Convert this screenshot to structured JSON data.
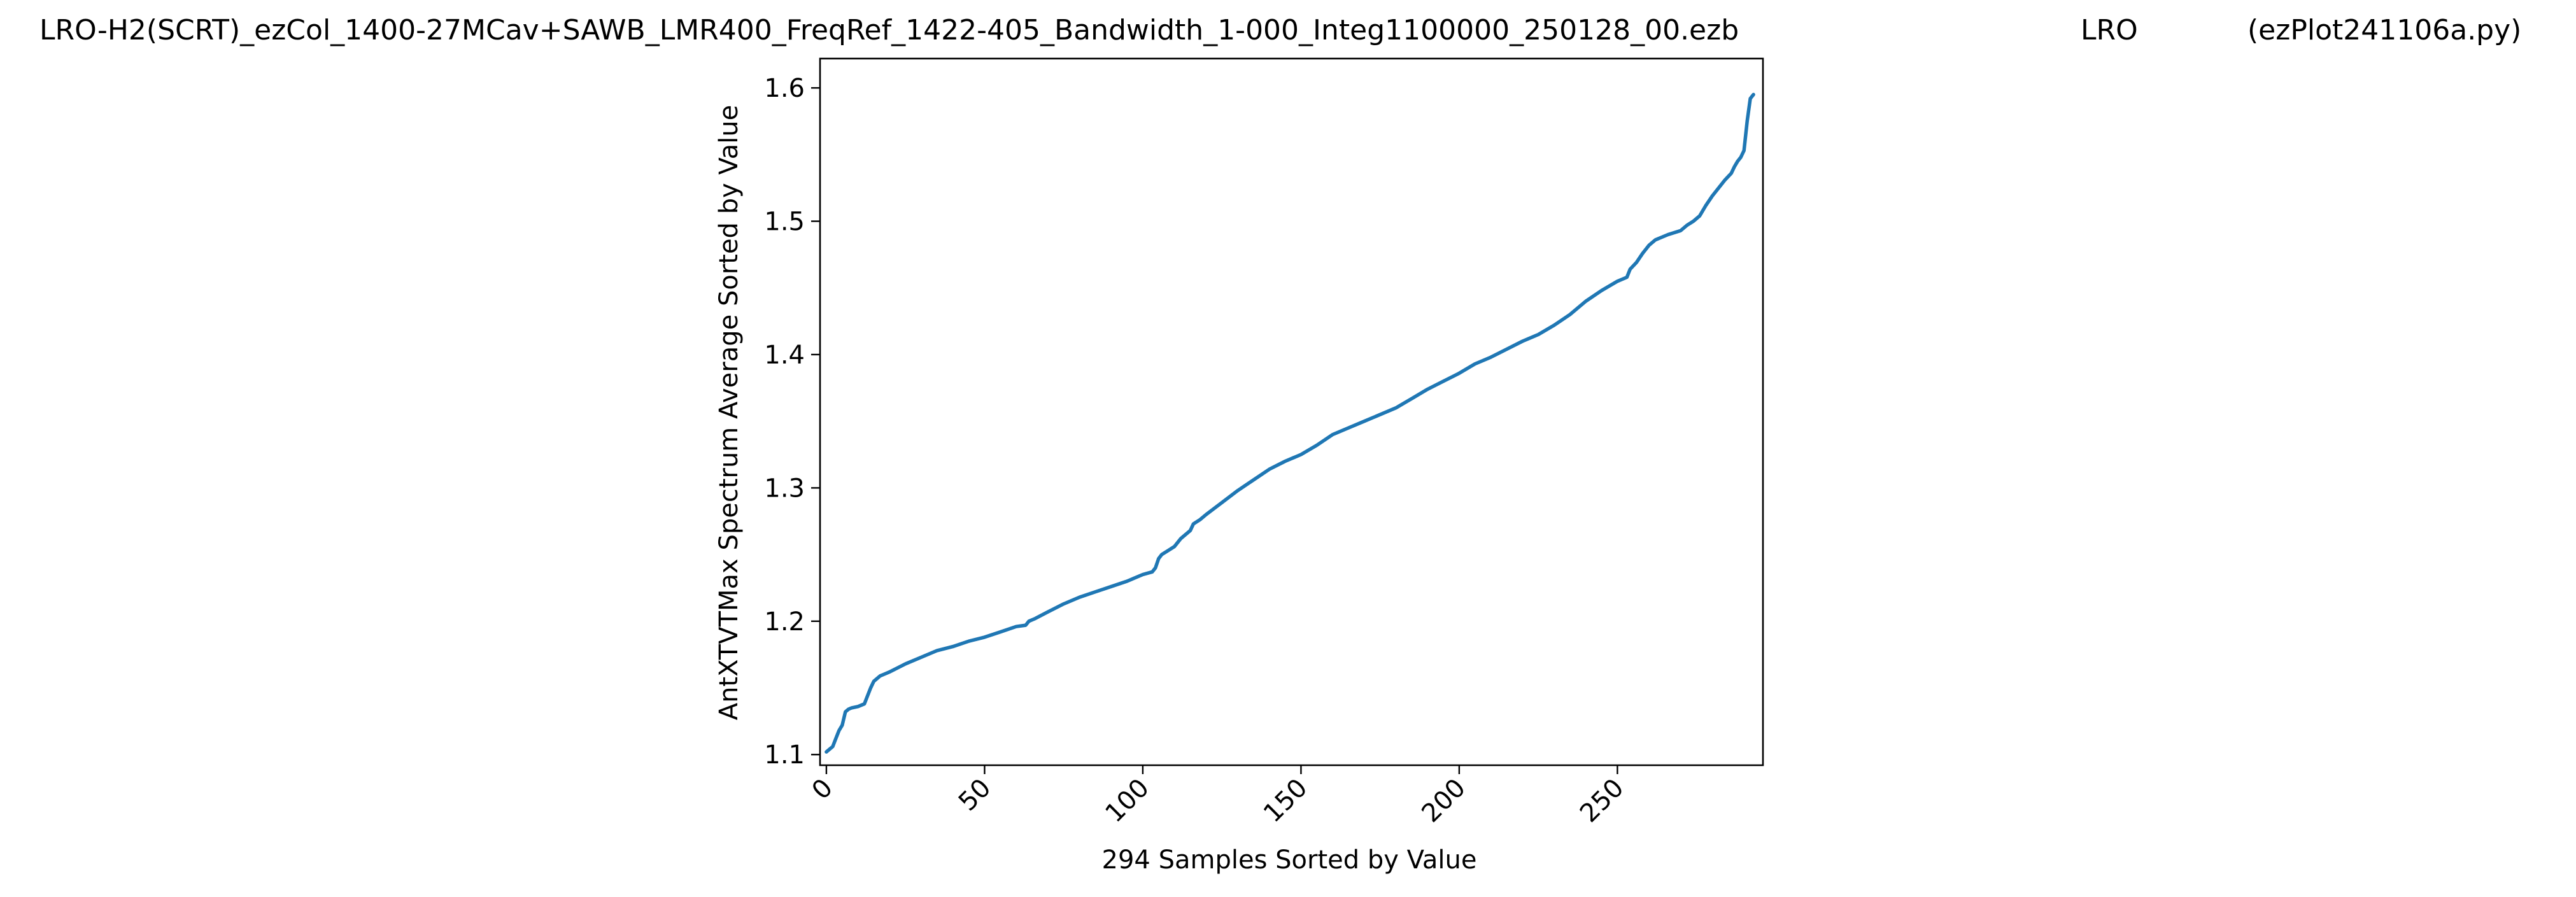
{
  "header": {
    "file_title": "LRO-H2(SCRT)_ezCol_1400-27MCav+SAWB_LMR400_FreqRef_1422-405_Bandwidth_1-000_Integ1100000_250128_00.ezb",
    "station": "LRO",
    "program": "(ezPlot241106a.py)"
  },
  "chart_data": {
    "type": "line",
    "xlabel": "294 Samples Sorted by Value",
    "ylabel": "AntXTVTMax Spectrum Average Sorted by Value",
    "xlim": [
      -2,
      296
    ],
    "ylim": [
      1.092,
      1.622
    ],
    "x_ticks": [
      0,
      50,
      100,
      150,
      200,
      250
    ],
    "y_ticks": [
      1.1,
      1.2,
      1.3,
      1.4,
      1.5,
      1.6
    ],
    "y_tick_labels": [
      "1.1",
      "1.2",
      "1.3",
      "1.4",
      "1.5",
      "1.6"
    ],
    "x_tick_rotation_deg": 45,
    "grid": false,
    "series_color": "#1f77b4",
    "sample_count": 294,
    "series": [
      {
        "x": [
          0,
          1,
          2,
          3,
          4,
          5,
          6,
          7,
          8,
          10,
          12,
          14,
          15,
          16,
          17,
          18,
          20,
          25,
          30,
          35,
          40,
          45,
          50,
          55,
          60,
          63,
          64,
          66,
          70,
          75,
          80,
          85,
          90,
          95,
          100,
          103,
          104,
          105,
          106,
          108,
          110,
          112,
          114,
          115,
          116,
          118,
          120,
          125,
          130,
          135,
          140,
          145,
          150,
          155,
          160,
          165,
          170,
          175,
          180,
          185,
          190,
          195,
          200,
          205,
          210,
          215,
          220,
          225,
          230,
          235,
          240,
          245,
          250,
          253,
          254,
          256,
          258,
          260,
          262,
          264,
          266,
          270,
          272,
          274,
          276,
          278,
          280,
          282,
          284,
          286,
          287,
          288,
          289,
          290,
          291,
          292,
          293
        ],
        "y": [
          1.102,
          1.104,
          1.106,
          1.112,
          1.118,
          1.122,
          1.132,
          1.134,
          1.135,
          1.136,
          1.138,
          1.15,
          1.155,
          1.157,
          1.159,
          1.16,
          1.162,
          1.168,
          1.173,
          1.178,
          1.181,
          1.185,
          1.188,
          1.192,
          1.196,
          1.197,
          1.2,
          1.202,
          1.207,
          1.213,
          1.218,
          1.222,
          1.226,
          1.23,
          1.235,
          1.237,
          1.24,
          1.247,
          1.25,
          1.253,
          1.256,
          1.262,
          1.266,
          1.268,
          1.273,
          1.276,
          1.28,
          1.289,
          1.298,
          1.306,
          1.314,
          1.32,
          1.325,
          1.332,
          1.34,
          1.345,
          1.35,
          1.355,
          1.36,
          1.367,
          1.374,
          1.38,
          1.386,
          1.393,
          1.398,
          1.404,
          1.41,
          1.415,
          1.422,
          1.43,
          1.44,
          1.448,
          1.455,
          1.458,
          1.464,
          1.469,
          1.476,
          1.482,
          1.486,
          1.488,
          1.49,
          1.493,
          1.497,
          1.5,
          1.504,
          1.512,
          1.519,
          1.525,
          1.531,
          1.536,
          1.541,
          1.545,
          1.548,
          1.553,
          1.575,
          1.592,
          1.595
        ]
      }
    ]
  }
}
